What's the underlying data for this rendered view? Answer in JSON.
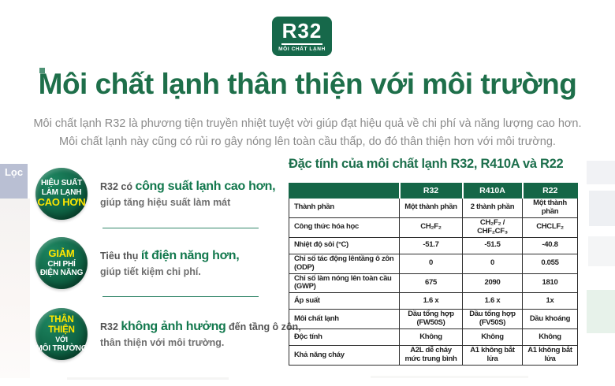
{
  "artifacts": {
    "filter_label": "Lọc"
  },
  "badge": {
    "title": "R32",
    "subtitle": "MÔI CHẤT LẠNH"
  },
  "heading": "Môi chất lạnh thân thiện với môi trường",
  "intro": {
    "line1": "Môi chất lạnh R32 là phương tiện truyền nhiệt tuyệt vời giúp đạt hiệu quả về chi phí và năng lượng cao hơn.",
    "line2": "Môi chất lạnh này cũng có rủi ro gây nóng lên toàn cầu thấp, do đó thân thiện hơn với môi trường."
  },
  "benefits": [
    {
      "circle": {
        "line1": "HIỆU SUẤT",
        "line2": "LÀM LẠNH",
        "line3": "CAO HƠN"
      },
      "text": {
        "prefix": "R32 có ",
        "highlight": "công suất lạnh cao hơn,",
        "suffix": "",
        "line2": "giúp tăng hiệu suất làm mát"
      }
    },
    {
      "circle": {
        "line1": "GIẢM",
        "line2": "CHI PHÍ",
        "line3": "ĐIỆN NĂNG"
      },
      "text": {
        "prefix": "Tiêu thụ ",
        "highlight": "ít điện năng hơn,",
        "suffix": "",
        "line2": "giúp tiết kiệm chi phí."
      }
    },
    {
      "circle": {
        "line1": "THÂN THIỆN",
        "line2": "VỚI",
        "line3": "MÔI TRƯỜNG"
      },
      "text": {
        "prefix": "R32 ",
        "highlight": "không ảnh hưởng",
        "suffix": " đến tầng ô zôn,",
        "line2": "thân thiện với môi trường."
      }
    }
  ],
  "table": {
    "title": "Đặc tính của môi chất lạnh R32, R410A và R22",
    "columns": [
      "",
      "R32",
      "R410A",
      "R22"
    ],
    "rows": [
      {
        "label": "Thành phần",
        "values": [
          "Một thành phần",
          "2 thành phần",
          "Một thành phần"
        ]
      },
      {
        "label": "Công thức hóa học",
        "values": [
          "CH₂F₂",
          "CH₂F₂ / CHF₂CF₃",
          "CHCLF₂"
        ]
      },
      {
        "label": "Nhiệt độ sôi (°C)",
        "values": [
          "-51.7",
          "-51.5",
          "-40.8"
        ]
      },
      {
        "label": "Chỉ số tác động lêntầng ô zôn (ODP)",
        "values": [
          "0",
          "0",
          "0.055"
        ]
      },
      {
        "label": "Chỉ số làm nóng lên toàn cầu (GWP)",
        "values": [
          "675",
          "2090",
          "1810"
        ]
      },
      {
        "label": "Áp suất",
        "values": [
          "1.6 x",
          "1.6 x",
          "1x"
        ]
      },
      {
        "label": "Môi chất lạnh",
        "values": [
          "Dầu tổng hợp (FW50S)",
          "Dầu tổng hợp (FV50S)",
          "Dầu khoáng"
        ]
      },
      {
        "label": "Độc tính",
        "values": [
          "Không",
          "Không",
          "Không"
        ]
      },
      {
        "label": "Khả năng cháy",
        "values": [
          "A2L dễ cháy mức trung bình",
          "A1 không bắt lửa",
          "A1 không bắt lửa"
        ]
      }
    ]
  },
  "colors": {
    "green_dark": "#156647",
    "green_heading": "#1e6f4a",
    "accent_yellow": "#ffe600",
    "text_grey": "#8b8b8b"
  }
}
